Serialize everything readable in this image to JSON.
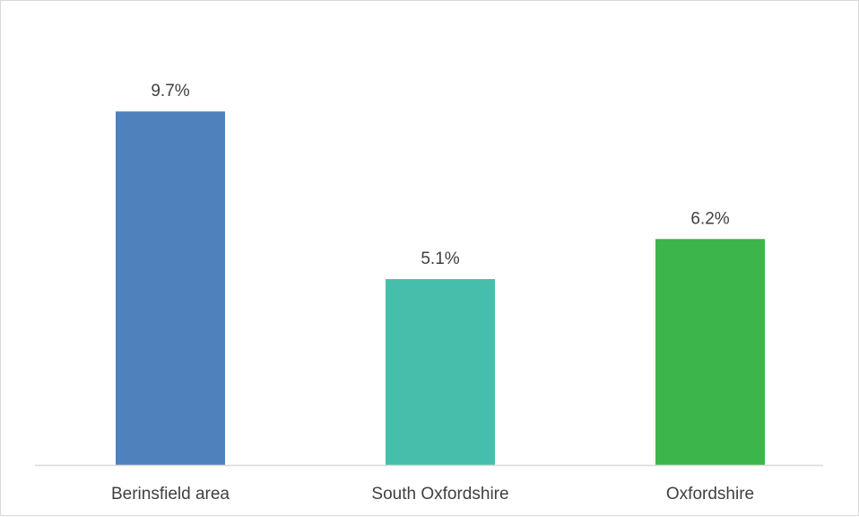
{
  "chart_data": {
    "type": "bar",
    "categories": [
      "Berinsfield area",
      "South Oxfordshire",
      "Oxfordshire"
    ],
    "values": [
      9.7,
      5.1,
      6.2
    ],
    "data_labels": [
      "9.7%",
      "5.1%",
      "6.2%"
    ],
    "colors": [
      "#4f81bd",
      "#45bfab",
      "#3cb54a"
    ],
    "title": "",
    "xlabel": "",
    "ylabel": "",
    "ylim": [
      0,
      11.5
    ],
    "grid": false,
    "legend": "none",
    "axis_color": "#d9d9d9"
  }
}
